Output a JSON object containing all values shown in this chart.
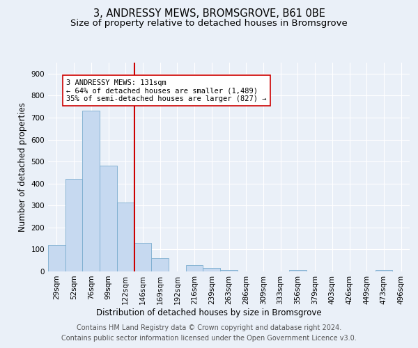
{
  "title": "3, ANDRESSY MEWS, BROMSGROVE, B61 0BE",
  "subtitle": "Size of property relative to detached houses in Bromsgrove",
  "xlabel": "Distribution of detached houses by size in Bromsgrove",
  "ylabel": "Number of detached properties",
  "categories": [
    "29sqm",
    "52sqm",
    "76sqm",
    "99sqm",
    "122sqm",
    "146sqm",
    "169sqm",
    "192sqm",
    "216sqm",
    "239sqm",
    "263sqm",
    "286sqm",
    "309sqm",
    "333sqm",
    "356sqm",
    "379sqm",
    "403sqm",
    "426sqm",
    "449sqm",
    "473sqm",
    "496sqm"
  ],
  "values": [
    120,
    420,
    730,
    480,
    315,
    130,
    60,
    0,
    30,
    15,
    5,
    0,
    0,
    0,
    5,
    0,
    0,
    0,
    0,
    5,
    0
  ],
  "bar_color": "#c6d9f0",
  "bar_edge_color": "#7aacce",
  "vline_x": 4.5,
  "vline_color": "#cc0000",
  "annotation_text": "3 ANDRESSY MEWS: 131sqm\n← 64% of detached houses are smaller (1,489)\n35% of semi-detached houses are larger (827) →",
  "annotation_box_color": "#ffffff",
  "annotation_box_edge": "#cc0000",
  "ylim": [
    0,
    950
  ],
  "yticks": [
    0,
    100,
    200,
    300,
    400,
    500,
    600,
    700,
    800,
    900
  ],
  "footer_line1": "Contains HM Land Registry data © Crown copyright and database right 2024.",
  "footer_line2": "Contains public sector information licensed under the Open Government Licence v3.0.",
  "bg_color": "#eaf0f8",
  "plot_bg_color": "#eaf0f8",
  "title_fontsize": 10.5,
  "subtitle_fontsize": 9.5,
  "axis_label_fontsize": 8.5,
  "tick_fontsize": 7.5,
  "footer_fontsize": 7.0
}
